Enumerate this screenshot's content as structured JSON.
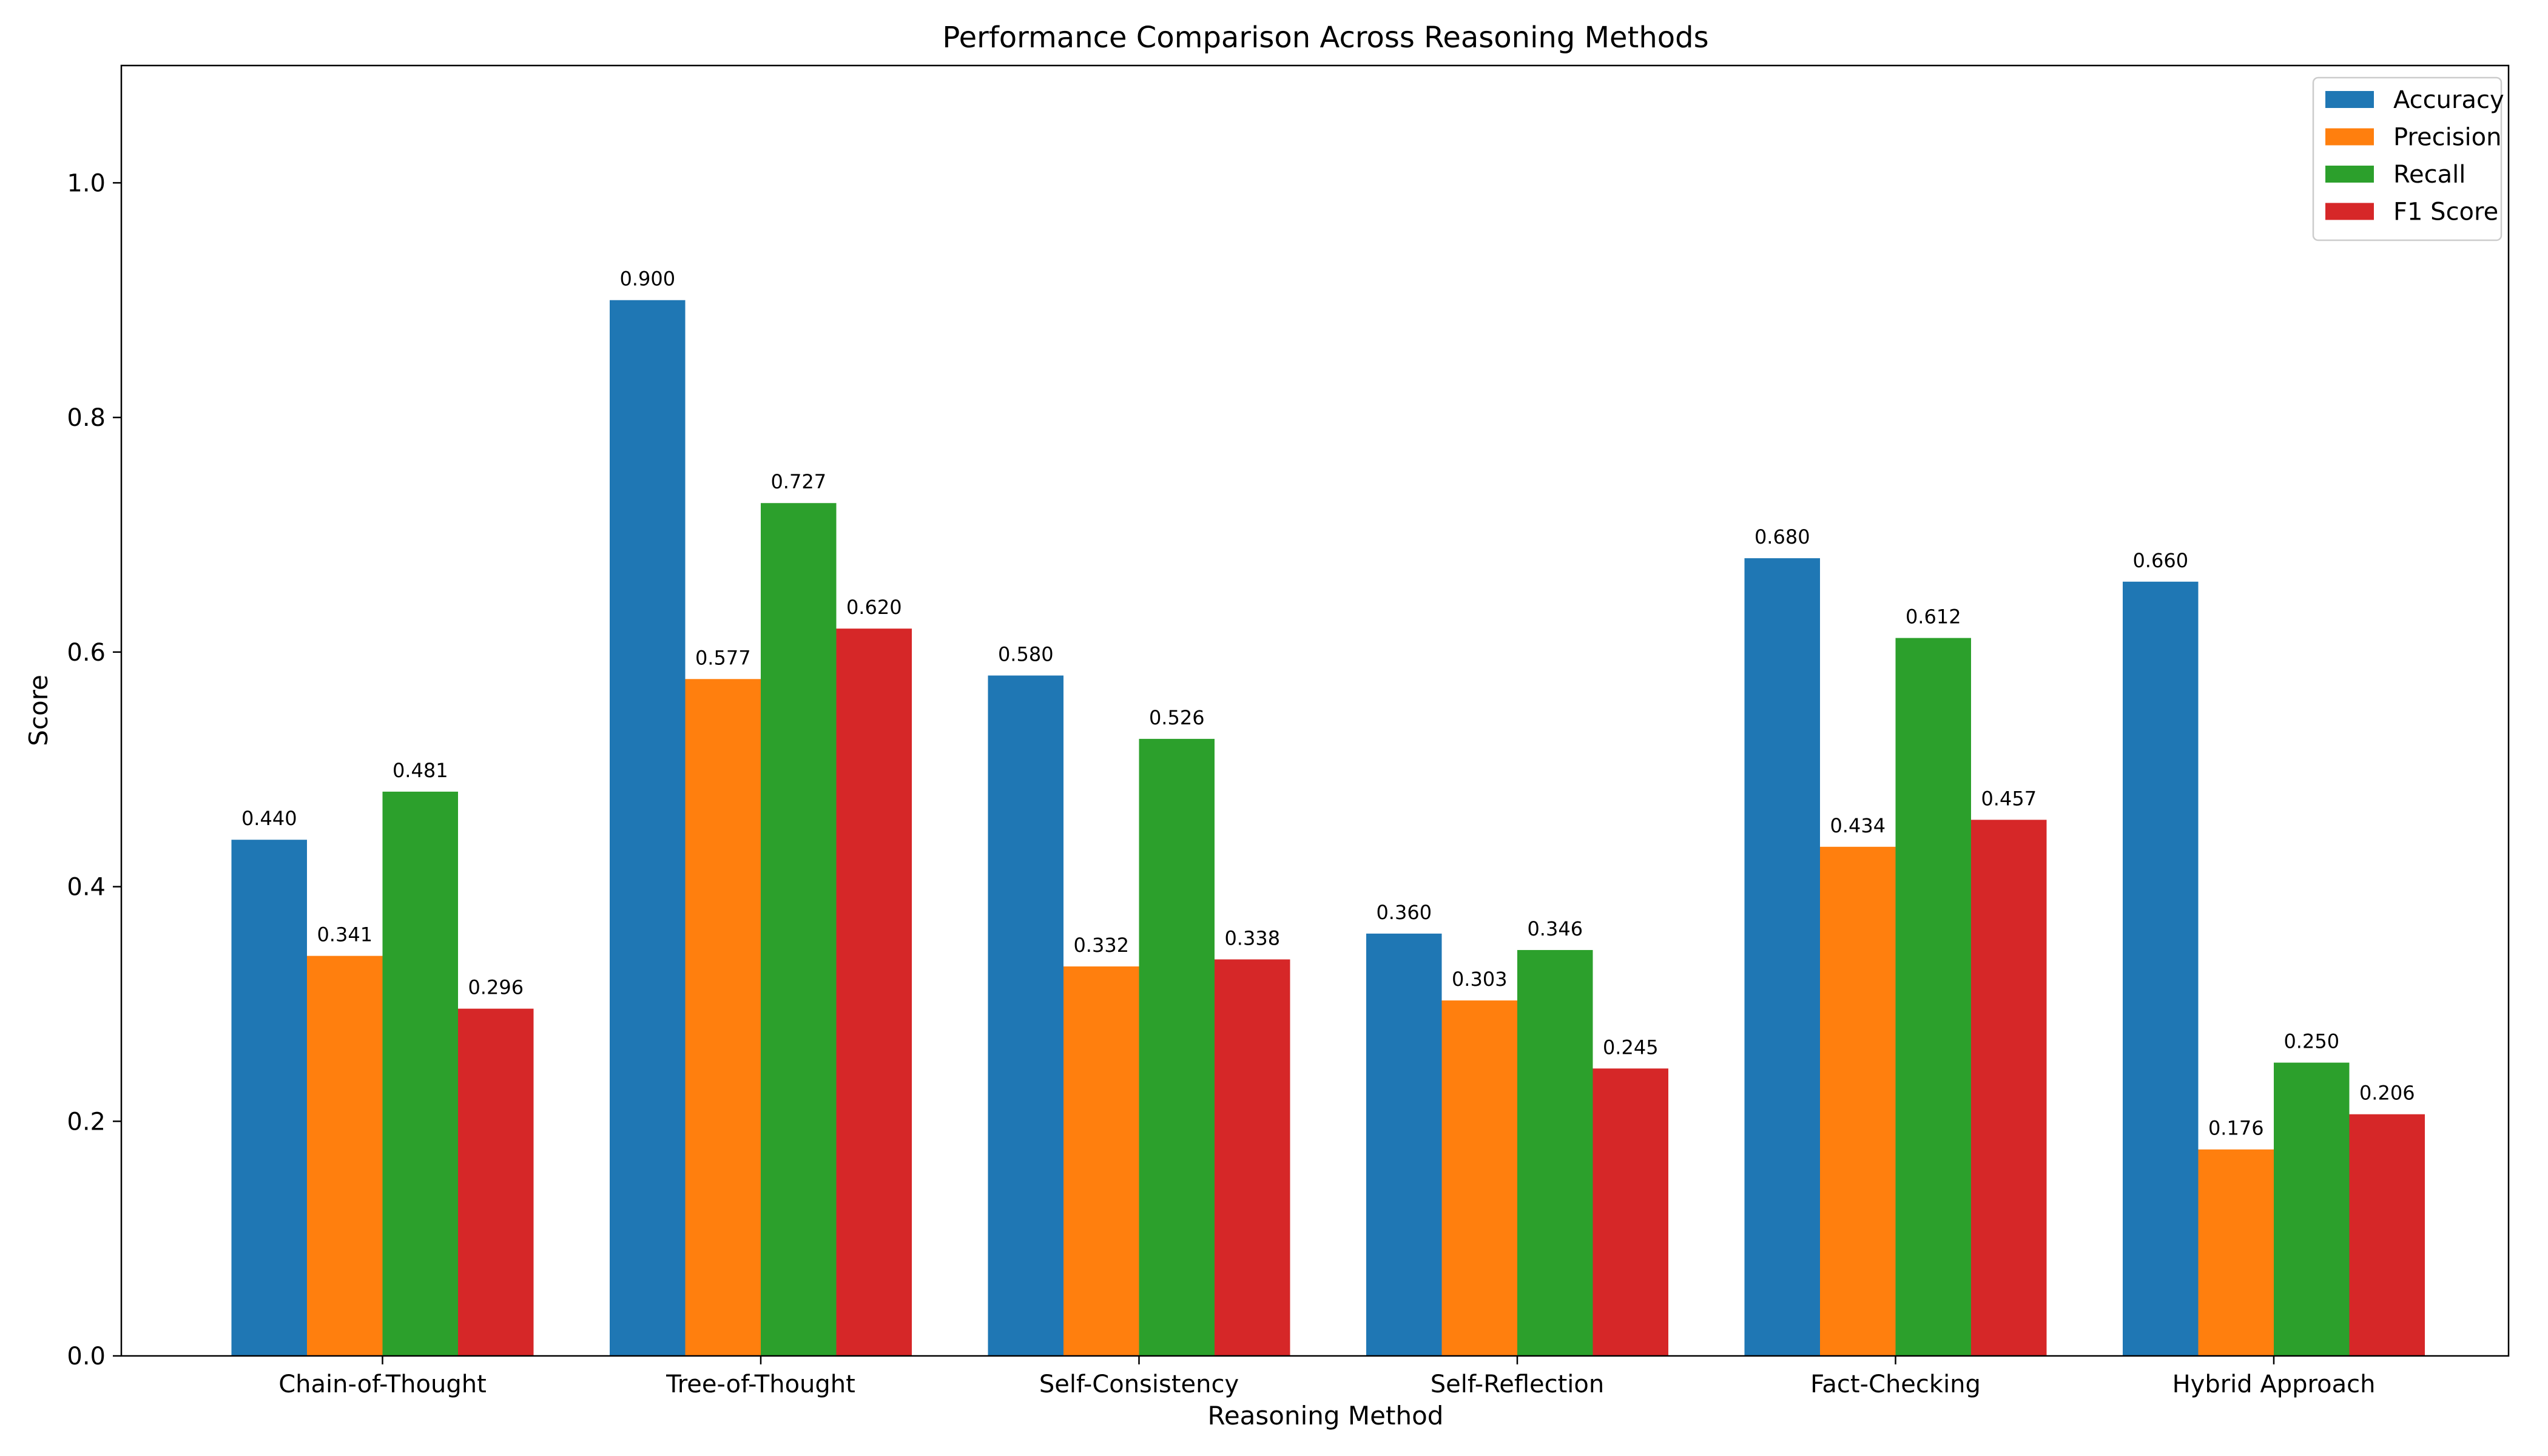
{
  "chart_data": {
    "type": "bar",
    "title": "Performance Comparison Across Reasoning Methods",
    "xlabel": "Reasoning Method",
    "ylabel": "Score",
    "ylim": [
      0,
      1.1
    ],
    "yticks": [
      0.0,
      0.2,
      0.4,
      0.6,
      0.8,
      1.0
    ],
    "ytick_labels": [
      "0.0",
      "0.2",
      "0.4",
      "0.6",
      "0.8",
      "1.0"
    ],
    "grid": false,
    "legend_position": "top-right",
    "categories": [
      "Chain-of-Thought",
      "Tree-of-Thought",
      "Self-Consistency",
      "Self-Reflection",
      "Fact-Checking",
      "Hybrid Approach"
    ],
    "series": [
      {
        "name": "Accuracy",
        "color": "#1f77b4",
        "values": [
          0.44,
          0.9,
          0.58,
          0.36,
          0.68,
          0.66
        ],
        "labels": [
          "0.440",
          "0.900",
          "0.580",
          "0.360",
          "0.680",
          "0.660"
        ]
      },
      {
        "name": "Precision",
        "color": "#ff7f0e",
        "values": [
          0.341,
          0.577,
          0.332,
          0.303,
          0.434,
          0.176
        ],
        "labels": [
          "0.341",
          "0.577",
          "0.332",
          "0.303",
          "0.434",
          "0.176"
        ]
      },
      {
        "name": "Recall",
        "color": "#2ca02c",
        "values": [
          0.481,
          0.727,
          0.526,
          0.346,
          0.612,
          0.25
        ],
        "labels": [
          "0.481",
          "0.727",
          "0.526",
          "0.346",
          "0.612",
          "0.250"
        ]
      },
      {
        "name": "F1 Score",
        "color": "#d62728",
        "values": [
          0.296,
          0.62,
          0.338,
          0.245,
          0.457,
          0.206
        ],
        "labels": [
          "0.296",
          "0.620",
          "0.338",
          "0.245",
          "0.457",
          "0.206"
        ]
      }
    ]
  }
}
